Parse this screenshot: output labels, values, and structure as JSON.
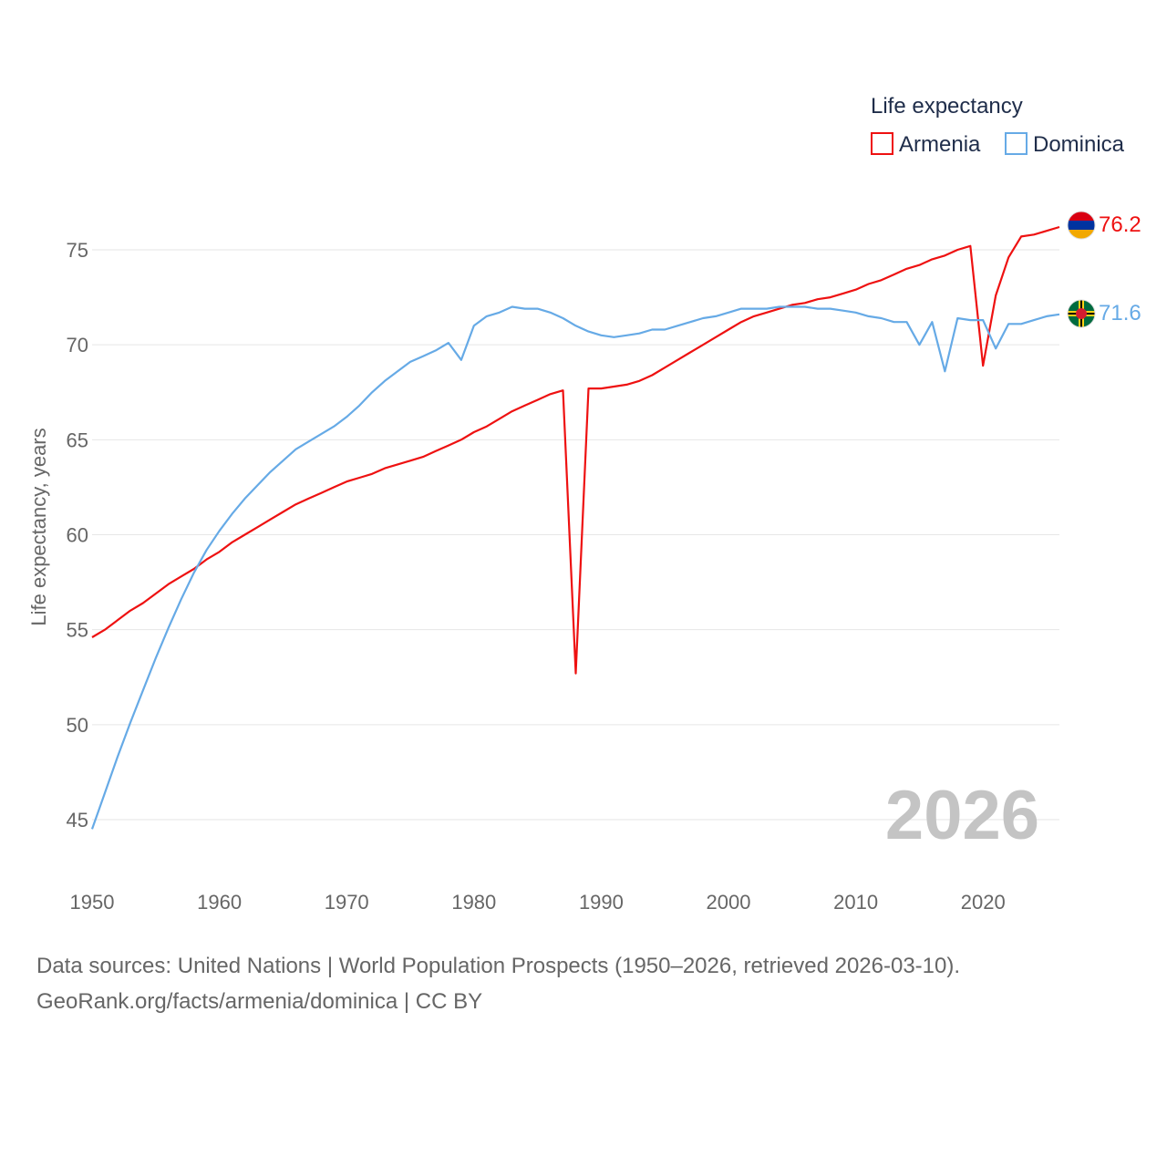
{
  "chart_data": {
    "type": "line",
    "title": "",
    "xlabel": "",
    "ylabel": "Life expectancy, years",
    "xlim": [
      1950,
      2026
    ],
    "ylim": [
      44,
      79
    ],
    "x_ticks": [
      1950,
      1960,
      1970,
      1980,
      1990,
      2000,
      2010,
      2020
    ],
    "y_ticks": [
      45,
      50,
      55,
      60,
      65,
      70,
      75
    ],
    "legend_title": "Life expectancy",
    "legend_position": "top-right",
    "year_watermark": "2026",
    "grid": true,
    "x": [
      1950,
      1951,
      1952,
      1953,
      1954,
      1955,
      1956,
      1957,
      1958,
      1959,
      1960,
      1961,
      1962,
      1963,
      1964,
      1965,
      1966,
      1967,
      1968,
      1969,
      1970,
      1971,
      1972,
      1973,
      1974,
      1975,
      1976,
      1977,
      1978,
      1979,
      1980,
      1981,
      1982,
      1983,
      1984,
      1985,
      1986,
      1987,
      1988,
      1989,
      1990,
      1991,
      1992,
      1993,
      1994,
      1995,
      1996,
      1997,
      1998,
      1999,
      2000,
      2001,
      2002,
      2003,
      2004,
      2005,
      2006,
      2007,
      2008,
      2009,
      2010,
      2011,
      2012,
      2013,
      2014,
      2015,
      2016,
      2017,
      2018,
      2019,
      2020,
      2021,
      2022,
      2023,
      2024,
      2025,
      2026
    ],
    "series": [
      {
        "name": "Armenia",
        "color": "#ee1111",
        "end_label": "76.2",
        "values": [
          54.6,
          55.0,
          55.5,
          56.0,
          56.4,
          56.9,
          57.4,
          57.8,
          58.2,
          58.7,
          59.1,
          59.6,
          60.0,
          60.4,
          60.8,
          61.2,
          61.6,
          61.9,
          62.2,
          62.5,
          62.8,
          63.0,
          63.2,
          63.5,
          63.7,
          63.9,
          64.1,
          64.4,
          64.7,
          65.0,
          65.4,
          65.7,
          66.1,
          66.5,
          66.8,
          67.1,
          67.4,
          67.6,
          52.7,
          67.7,
          67.7,
          67.8,
          67.9,
          68.1,
          68.4,
          68.8,
          69.2,
          69.6,
          70.0,
          70.4,
          70.8,
          71.2,
          71.5,
          71.7,
          71.9,
          72.1,
          72.2,
          72.4,
          72.5,
          72.7,
          72.9,
          73.2,
          73.4,
          73.7,
          74.0,
          74.2,
          74.5,
          74.7,
          75.0,
          75.2,
          68.9,
          72.6,
          74.6,
          75.7,
          75.8,
          76.0,
          76.2
        ]
      },
      {
        "name": "Dominica",
        "color": "#66aae6",
        "end_label": "71.6",
        "values": [
          44.5,
          46.4,
          48.3,
          50.1,
          51.8,
          53.5,
          55.1,
          56.6,
          58.0,
          59.2,
          60.2,
          61.1,
          61.9,
          62.6,
          63.3,
          63.9,
          64.5,
          64.9,
          65.3,
          65.7,
          66.2,
          66.8,
          67.5,
          68.1,
          68.6,
          69.1,
          69.4,
          69.7,
          70.1,
          69.2,
          71.0,
          71.5,
          71.7,
          72.0,
          71.9,
          71.9,
          71.7,
          71.4,
          71.0,
          70.7,
          70.5,
          70.4,
          70.5,
          70.6,
          70.8,
          70.8,
          71.0,
          71.2,
          71.4,
          71.5,
          71.7,
          71.9,
          71.9,
          71.9,
          72.0,
          72.0,
          72.0,
          71.9,
          71.9,
          71.8,
          71.7,
          71.5,
          71.4,
          71.2,
          71.2,
          70.0,
          71.2,
          68.6,
          71.4,
          71.3,
          71.3,
          69.8,
          71.1,
          71.1,
          71.3,
          71.5,
          71.6
        ]
      }
    ]
  },
  "footer": {
    "sources": "Data sources: United Nations | World Population Prospects (1950–2026, retrieved 2026-03-10).",
    "attribution": "GeoRank.org/facts/armenia/dominica | CC BY"
  }
}
